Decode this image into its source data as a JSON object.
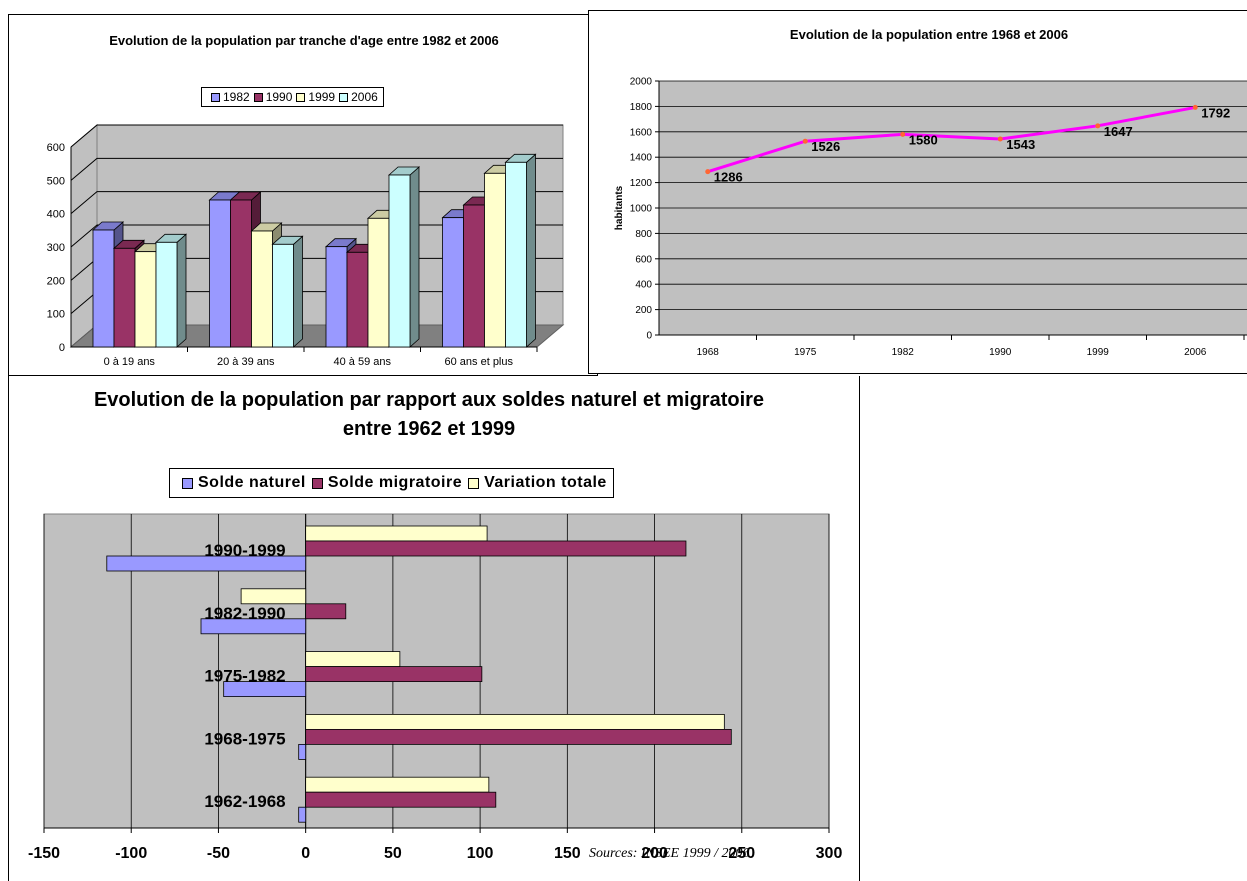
{
  "chart_data": [
    {
      "type": "bar",
      "title": "Evolution de la population par tranche d'age entre 1982 et 2006",
      "categories": [
        "0 à 19 ans",
        "20 à 39 ans",
        "40 à 59 ans",
        "60 ans et plus"
      ],
      "series": [
        {
          "name": "1982",
          "color": "#9999ff",
          "values": [
            375,
            465,
            325,
            412
          ]
        },
        {
          "name": "1990",
          "color": "#993366",
          "values": [
            320,
            465,
            308,
            450
          ]
        },
        {
          "name": "1999",
          "color": "#ffffcc",
          "values": [
            310,
            372,
            410,
            545
          ]
        },
        {
          "name": "2006",
          "color": "#ccffff",
          "values": [
            338,
            332,
            540,
            578
          ]
        }
      ],
      "yticks": [
        "0",
        "100",
        "200",
        "300",
        "400",
        "500",
        "600"
      ],
      "ylim": [
        0,
        600
      ],
      "legend": "top",
      "grid": true,
      "style": "3d-clustered-column"
    },
    {
      "type": "line",
      "title": "Evolution de la population entre 1968 et 2006",
      "ylabel": "habitants",
      "categories": [
        "1968",
        "1975",
        "1982",
        "1990",
        "1999",
        "2006"
      ],
      "series": [
        {
          "color": "#ff00ff",
          "values": [
            1286,
            1526,
            1580,
            1543,
            1647,
            1792
          ]
        }
      ],
      "data_labels": [
        "1286",
        "1526",
        "1580",
        "1543",
        "1647",
        "1792"
      ],
      "yticks": [
        "0",
        "200",
        "400",
        "600",
        "800",
        "1000",
        "1200",
        "1400",
        "1600",
        "1800",
        "2000"
      ],
      "ylim": [
        0,
        2000
      ],
      "grid": true
    },
    {
      "type": "bar",
      "orientation": "horizontal",
      "title": "Evolution de la population par rapport aux soldes naturel et migratoire entre 1962 et 1999",
      "categories": [
        "1990-1999",
        "1982-1990",
        "1975-1982",
        "1968-1975",
        "1962-1968"
      ],
      "series": [
        {
          "name": "Solde naturel",
          "color": "#9999ff",
          "values": [
            -114,
            -60,
            -47,
            -4,
            -4
          ]
        },
        {
          "name": "Solde migratoire",
          "color": "#993366",
          "values": [
            218,
            23,
            101,
            244,
            109
          ]
        },
        {
          "name": "Variation totale",
          "color": "#ffffcc",
          "values": [
            104,
            -37,
            54,
            240,
            105
          ]
        }
      ],
      "xticks": [
        "-150",
        "-100",
        "-50",
        "0",
        "50",
        "100",
        "150",
        "200",
        "250",
        "300"
      ],
      "xlim": [
        -150,
        300
      ],
      "legend": "top",
      "source": "Sources: INSEE 1999 / 2006"
    }
  ]
}
